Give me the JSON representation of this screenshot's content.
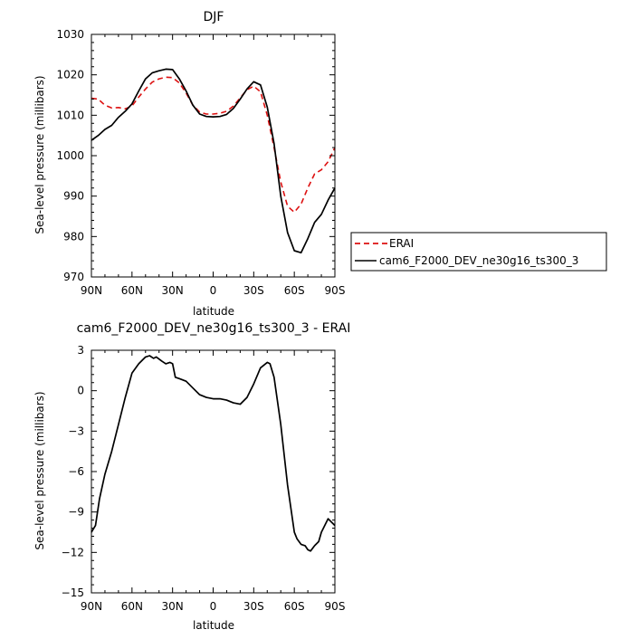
{
  "chart_data": [
    {
      "type": "line",
      "title": "DJF",
      "xlabel": "latitude",
      "ylabel": "Sea-level pressure (millibars)",
      "xlim": [
        90,
        -90
      ],
      "ylim": [
        970,
        1030
      ],
      "x_ticks": [
        90,
        60,
        30,
        0,
        -30,
        -60,
        -90
      ],
      "x_tick_labels": [
        "90N",
        "60N",
        "30N",
        "0",
        "30S",
        "60S",
        "90S"
      ],
      "y_ticks": [
        970,
        980,
        990,
        1000,
        1010,
        1020,
        1030
      ],
      "y_tick_labels": [
        "970",
        "980",
        "990",
        "1000",
        "1010",
        "1020",
        "1030"
      ],
      "legend_placement": "right",
      "series": [
        {
          "name": "ERAI",
          "color": "#dd1111",
          "dash": "dashed",
          "x": [
            90,
            85,
            80,
            75,
            70,
            65,
            60,
            55,
            50,
            45,
            40,
            35,
            30,
            25,
            20,
            15,
            10,
            5,
            0,
            -5,
            -10,
            -15,
            -20,
            -25,
            -30,
            -35,
            -40,
            -45,
            -50,
            -55,
            -60,
            -65,
            -70,
            -75,
            -80,
            -85,
            -90
          ],
          "y": [
            1014.2,
            1014.0,
            1012.5,
            1011.8,
            1011.9,
            1011.6,
            1012.3,
            1014.5,
            1016.5,
            1018.2,
            1019.0,
            1019.4,
            1019.3,
            1018.0,
            1015.5,
            1012.5,
            1010.8,
            1010.3,
            1010.3,
            1010.5,
            1011.0,
            1012.3,
            1014.3,
            1016.3,
            1017.2,
            1015.8,
            1010.0,
            1002.0,
            993.5,
            987.5,
            986.0,
            988.0,
            992.0,
            995.5,
            996.5,
            998.5,
            1002.0
          ]
        },
        {
          "name": "cam6_F2000_DEV_ne30g16_ts300_3",
          "color": "#000000",
          "dash": "solid",
          "x": [
            90,
            85,
            80,
            75,
            70,
            65,
            60,
            55,
            50,
            45,
            40,
            35,
            30,
            25,
            20,
            15,
            10,
            5,
            0,
            -5,
            -10,
            -15,
            -20,
            -25,
            -30,
            -35,
            -40,
            -45,
            -50,
            -55,
            -60,
            -65,
            -70,
            -75,
            -80,
            -85,
            -90
          ],
          "y": [
            1003.8,
            1005.0,
            1006.5,
            1007.5,
            1009.5,
            1011.0,
            1012.8,
            1016.0,
            1019.0,
            1020.5,
            1021.0,
            1021.4,
            1021.3,
            1019.0,
            1016.0,
            1012.5,
            1010.3,
            1009.7,
            1009.6,
            1009.7,
            1010.2,
            1011.7,
            1014.0,
            1016.5,
            1018.3,
            1017.5,
            1012.0,
            1003.0,
            990.0,
            981.0,
            976.5,
            976.0,
            979.5,
            983.5,
            985.5,
            989.0,
            992.0
          ]
        }
      ]
    },
    {
      "type": "line",
      "title": "cam6_F2000_DEV_ne30g16_ts300_3 - ERAI",
      "xlabel": "latitude",
      "ylabel": "Sea-level pressure (millibars)",
      "xlim": [
        90,
        -90
      ],
      "ylim": [
        -15,
        3
      ],
      "x_ticks": [
        90,
        60,
        30,
        0,
        -30,
        -60,
        -90
      ],
      "x_tick_labels": [
        "90N",
        "60N",
        "30N",
        "0",
        "30S",
        "60S",
        "90S"
      ],
      "y_ticks": [
        3,
        0,
        -3,
        -6,
        -9,
        -12,
        -15
      ],
      "y_tick_labels": [
        "3",
        "0",
        "−3",
        "−6",
        "−9",
        "−12",
        "−15"
      ],
      "series": [
        {
          "color": "#000000",
          "dash": "solid",
          "x": [
            90,
            87,
            84,
            80,
            75,
            70,
            65,
            60,
            55,
            50,
            47,
            44,
            42,
            38,
            35,
            32,
            30,
            28,
            25,
            20,
            15,
            10,
            5,
            0,
            -5,
            -10,
            -15,
            -20,
            -25,
            -30,
            -35,
            -40,
            -42,
            -45,
            -50,
            -55,
            -60,
            -62,
            -65,
            -68,
            -70,
            -72,
            -75,
            -78,
            -80,
            -85,
            -88,
            -90
          ],
          "y": [
            -10.5,
            -10.0,
            -8.0,
            -6.2,
            -4.5,
            -2.5,
            -0.5,
            1.3,
            2.0,
            2.5,
            2.6,
            2.4,
            2.5,
            2.2,
            2.0,
            2.1,
            2.0,
            1.0,
            0.9,
            0.7,
            0.2,
            -0.3,
            -0.5,
            -0.6,
            -0.6,
            -0.7,
            -0.9,
            -1.0,
            -0.5,
            0.5,
            1.7,
            2.1,
            2.0,
            1.0,
            -2.5,
            -7.0,
            -10.5,
            -11.0,
            -11.4,
            -11.5,
            -11.8,
            -11.9,
            -11.5,
            -11.2,
            -10.5,
            -9.5,
            -9.8,
            -10.0
          ]
        }
      ]
    }
  ]
}
